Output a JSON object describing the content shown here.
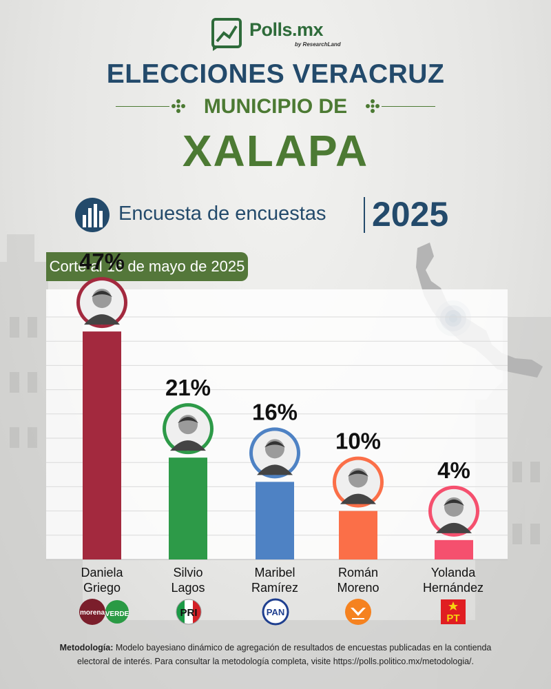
{
  "brand": {
    "name": "Polls.mx",
    "sub": "by ResearchLand",
    "colors": {
      "green": "#4c7a33",
      "navy": "#234a6b"
    }
  },
  "header": {
    "line1": "ELECCIONES VERACRUZ",
    "line2": "MUNICIPIO DE",
    "line3": "XALAPA",
    "subtitle": "Encuesta de encuestas",
    "year": "2025"
  },
  "cutoff": "Corte al 16 de mayo de 2025",
  "chart_data": {
    "type": "bar",
    "categories": [
      "Daniela Griego",
      "Silvio Lagos",
      "Maribel Ramírez",
      "Román Moreno",
      "Yolanda Hernández"
    ],
    "values": [
      47,
      21,
      16,
      10,
      4
    ],
    "value_labels": [
      "47%",
      "21%",
      "16%",
      "10%",
      "4%"
    ],
    "colors": [
      "#a3293e",
      "#2d9a48",
      "#4e82c4",
      "#fb6f48",
      "#f5506e"
    ],
    "ylim": [
      0,
      50
    ],
    "grid": true,
    "title": "",
    "xlabel": "",
    "ylabel": ""
  },
  "candidates": [
    {
      "first": "Daniela",
      "last": "Griego",
      "party": "morena-verde",
      "party_labels": [
        "morena",
        "VERDE"
      ]
    },
    {
      "first": "Silvio",
      "last": "Lagos",
      "party": "pri",
      "party_labels": [
        "PRI"
      ]
    },
    {
      "first": "Maribel",
      "last": "Ramírez",
      "party": "pan",
      "party_labels": [
        "PAN"
      ]
    },
    {
      "first": "Román",
      "last": "Moreno",
      "party": "mc",
      "party_labels": []
    },
    {
      "first": "Yolanda",
      "last": "Hernández",
      "party": "pt",
      "party_labels": [
        "PT"
      ]
    }
  ],
  "methodology": {
    "label": "Metodología:",
    "text": "Modelo bayesiano dinámico de agregación de resultados de encuestas publicadas en la contienda electoral de interés. Para consultar la metodología completa, visite https://polls.politico.mx/metodologia/."
  }
}
